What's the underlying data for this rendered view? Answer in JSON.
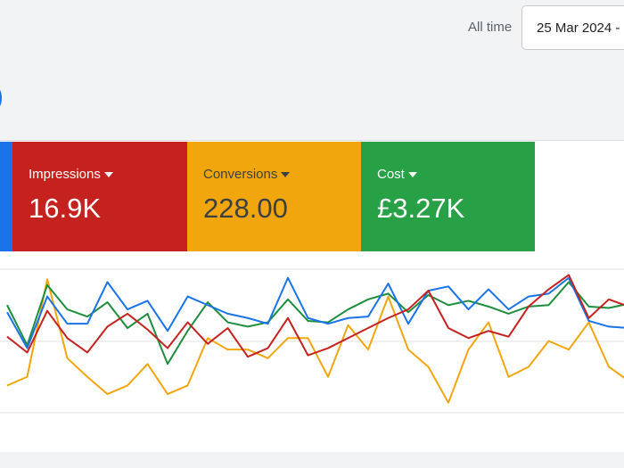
{
  "header": {
    "range_label": "All time",
    "date_range": "25 Mar 2024 -"
  },
  "metrics": [
    {
      "label": "Impressions",
      "value": "16.9K"
    },
    {
      "label": "Conversions",
      "value": "228.00"
    },
    {
      "label": "Cost",
      "value": "£3.27K"
    }
  ],
  "chart_data": {
    "type": "line",
    "ylim": [
      0,
      100
    ],
    "series": [
      {
        "color": "#f2a60e",
        "values": [
          19,
          25,
          93,
          38,
          25,
          13,
          19,
          34,
          13,
          19,
          52,
          44,
          44,
          38,
          52,
          52,
          25,
          61,
          44,
          81,
          44,
          32,
          7,
          44,
          63,
          25,
          32,
          50,
          44,
          63,
          32,
          22
        ]
      },
      {
        "color": "#1e8e3e",
        "values": [
          75,
          47,
          89,
          72,
          67,
          77,
          59,
          69,
          34,
          57,
          77,
          63,
          60,
          63,
          79,
          64,
          63,
          72,
          79,
          83,
          70,
          82,
          75,
          78,
          74,
          69,
          74,
          75,
          91,
          74,
          73,
          76
        ]
      },
      {
        "color": "#1a73e8",
        "values": [
          70,
          45,
          81,
          62,
          62,
          91,
          72,
          78,
          57,
          81,
          75,
          69,
          66,
          62,
          94,
          66,
          62,
          66,
          67,
          90,
          62,
          85,
          88,
          72,
          86,
          72,
          81,
          83,
          94,
          64,
          60,
          59
        ]
      },
      {
        "color": "#c5221f",
        "values": [
          53,
          42,
          71,
          52,
          42,
          60,
          69,
          58,
          45,
          63,
          48,
          59,
          39,
          45,
          66,
          40,
          45,
          52,
          59,
          66,
          72,
          85,
          59,
          52,
          57,
          53,
          74,
          86,
          96,
          66,
          79,
          74
        ]
      }
    ]
  }
}
